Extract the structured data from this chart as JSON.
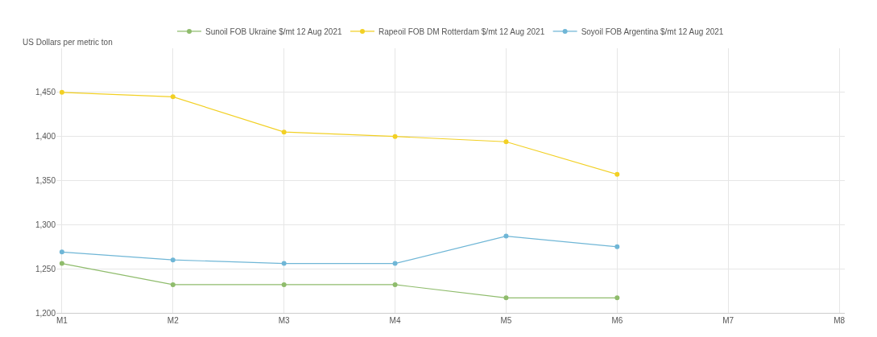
{
  "chart_data": {
    "type": "line",
    "ylabel": "US Dollars per metric ton",
    "categories": [
      "M1",
      "M2",
      "M3",
      "M4",
      "M5",
      "M6",
      "M7",
      "M8"
    ],
    "series": [
      {
        "name": "Sunoil FOB Ukraine $/mt 12 Aug 2021",
        "color": "#8fbc6c",
        "values": [
          1256,
          1232,
          1232,
          1232,
          1217,
          1217,
          null,
          null
        ]
      },
      {
        "name": "Rapeoil FOB DM Rotterdam $/mt 12 Aug 2021",
        "color": "#f2d024",
        "values": [
          1450,
          1445,
          1405,
          1400,
          1394,
          1357,
          null,
          null
        ]
      },
      {
        "name": "Soyoil FOB Argentina $/mt 12 Aug 2021",
        "color": "#6fb6d6",
        "values": [
          1269,
          1260,
          1256,
          1256,
          1287,
          1275,
          null,
          null
        ]
      }
    ],
    "ylim": [
      1200,
      1500
    ],
    "yticks": [
      {
        "value": 1200,
        "label": "1,200"
      },
      {
        "value": 1250,
        "label": "1,250"
      },
      {
        "value": 1300,
        "label": "1,300"
      },
      {
        "value": 1350,
        "label": "1,350"
      },
      {
        "value": 1400,
        "label": "1,400"
      },
      {
        "value": 1450,
        "label": "1,450"
      }
    ],
    "grid": true,
    "legend": "top",
    "marker": "circle"
  }
}
